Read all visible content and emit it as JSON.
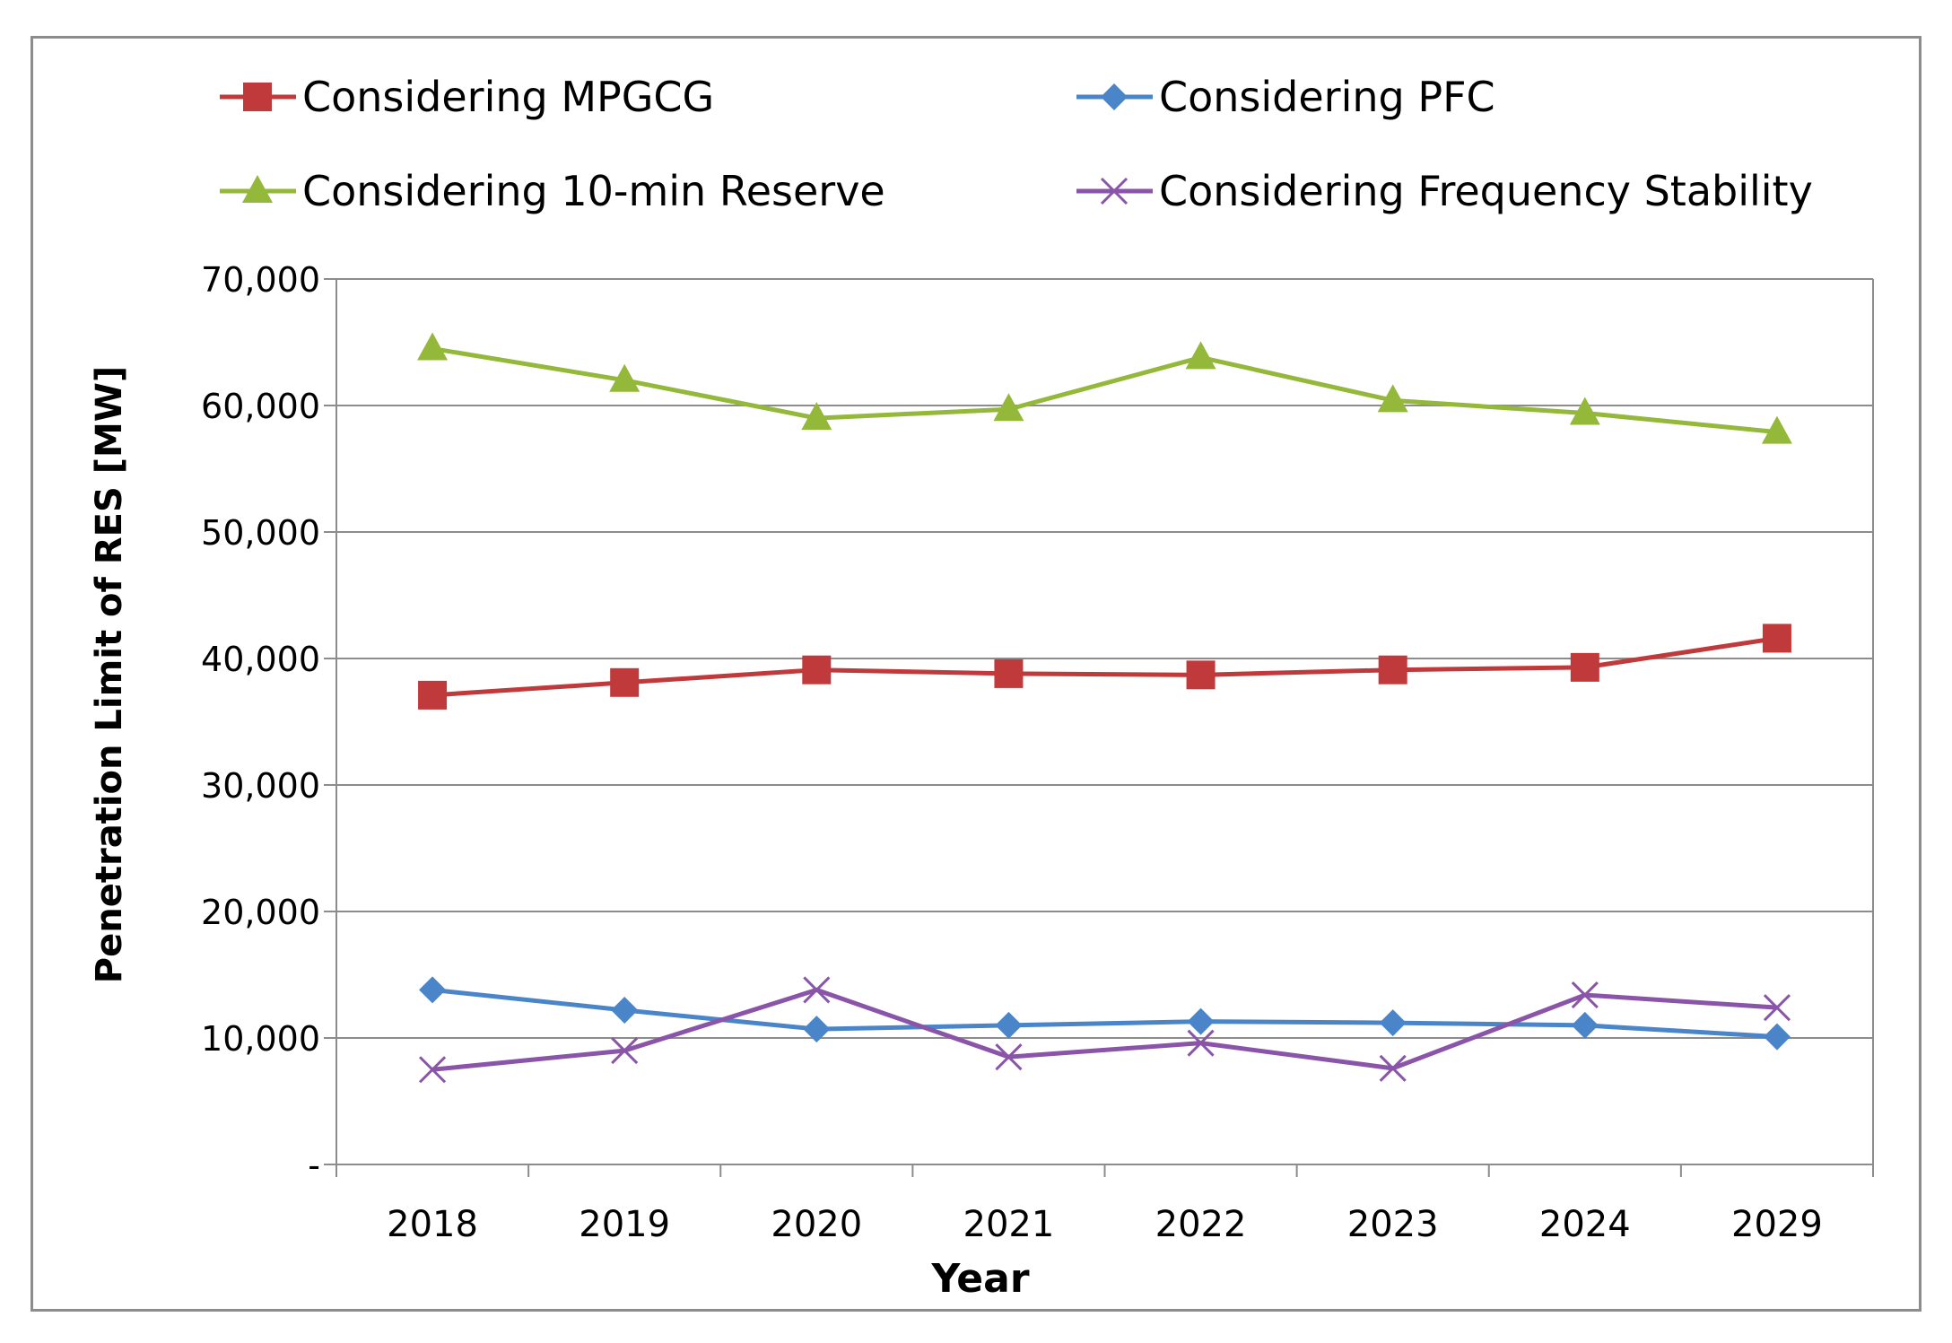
{
  "chart_data": {
    "type": "line",
    "title": "",
    "xlabel": "Year",
    "ylabel": "Penetration Limit of RES [MW]",
    "categories": [
      "2018",
      "2019",
      "2020",
      "2021",
      "2022",
      "2023",
      "2024",
      "2029"
    ],
    "ylim": [
      0,
      70000
    ],
    "yticks": [
      0,
      10000,
      20000,
      30000,
      40000,
      50000,
      60000,
      70000
    ],
    "ytick_labels": [
      "-",
      "10,000",
      "20,000",
      "30,000",
      "40,000",
      "50,000",
      "60,000",
      "70,000"
    ],
    "grid": true,
    "legend_position": "top",
    "series": [
      {
        "name": "Considering MPGCG",
        "color": "#c0393b",
        "marker": "square",
        "values": [
          37100,
          38100,
          39100,
          38800,
          38700,
          39100,
          39300,
          41600
        ]
      },
      {
        "name": "Considering PFC",
        "color": "#4a85c9",
        "marker": "diamond",
        "values": [
          13800,
          12200,
          10700,
          11000,
          11300,
          11200,
          11000,
          10100
        ]
      },
      {
        "name": "Considering 10-min Reserve",
        "color": "#93b83a",
        "marker": "triangle",
        "values": [
          64500,
          62000,
          59000,
          59700,
          63800,
          60400,
          59400,
          57900
        ]
      },
      {
        "name": "Considering Frequency Stability",
        "color": "#8a54a8",
        "marker": "x",
        "values": [
          7500,
          9000,
          13800,
          8500,
          9600,
          7600,
          13400,
          12400
        ]
      }
    ]
  }
}
